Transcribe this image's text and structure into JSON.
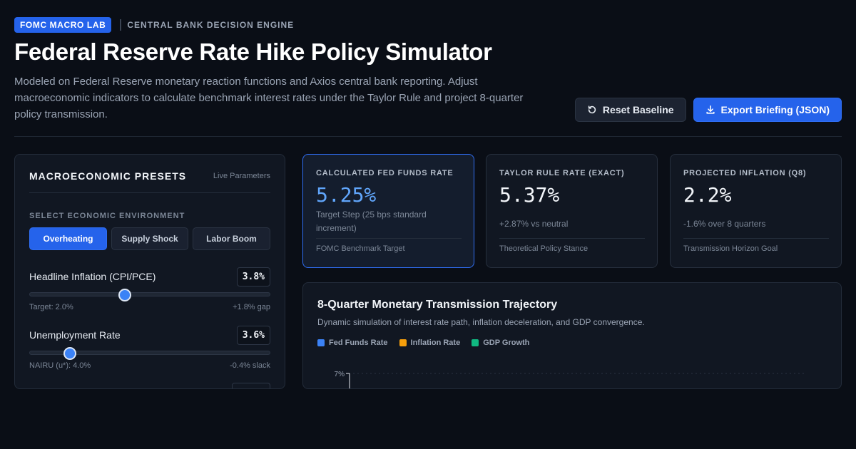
{
  "header": {
    "badge": "FOMC MACRO LAB",
    "eyebrow": "CENTRAL BANK DECISION ENGINE",
    "title": "Federal Reserve Rate Hike Policy Simulator",
    "subtitle": "Modeled on Federal Reserve monetary reaction functions and Axios central bank reporting. Adjust macroeconomic indicators to calculate benchmark interest rates under the Taylor Rule and project 8-quarter policy transmission.",
    "reset_label": "Reset Baseline",
    "export_label": "Export Briefing (JSON)"
  },
  "presets_panel": {
    "title": "MACROECONOMIC PRESETS",
    "live": "Live Parameters",
    "env_label": "SELECT ECONOMIC ENVIRONMENT",
    "presets": [
      {
        "label": "Overheating",
        "active": true
      },
      {
        "label": "Supply Shock",
        "active": false
      },
      {
        "label": "Labor Boom",
        "active": false
      }
    ],
    "params": [
      {
        "name": "Headline Inflation (CPI/PCE)",
        "value": "3.8%",
        "level": 0.395,
        "foot_left": "Target: 2.0%",
        "foot_right": "+1.8% gap"
      },
      {
        "name": "Unemployment Rate",
        "value": "3.6%",
        "level": 0.168,
        "foot_left": "NAIRU (u*): 4.0%",
        "foot_right": "-0.4% slack"
      }
    ]
  },
  "kpis": [
    {
      "label": "CALCULATED FED FUNDS RATE",
      "value": "5.25%",
      "sub": "Target Step (25 bps standard increment)",
      "foot": "FOMC Benchmark Target"
    },
    {
      "label": "TAYLOR RULE RATE (EXACT)",
      "value": "5.37%",
      "sub": "+2.87% vs neutral",
      "foot": "Theoretical Policy Stance"
    },
    {
      "label": "PROJECTED INFLATION (Q8)",
      "value": "2.2%",
      "sub": "-1.6% over 8 quarters",
      "foot": "Transmission Horizon Goal"
    }
  ],
  "chart": {
    "title": "8-Quarter Monetary Transmission Trajectory",
    "subtitle": "Dynamic simulation of interest rate path, inflation deceleration, and GDP convergence.",
    "legend": [
      {
        "name": "Fed Funds Rate",
        "color": "#3b82f6"
      },
      {
        "name": "Inflation Rate",
        "color": "#f59e0b"
      },
      {
        "name": "GDP Growth",
        "color": "#10b981"
      }
    ]
  },
  "chart_data": {
    "type": "line",
    "title": "8-Quarter Monetary Transmission Trajectory",
    "series": [
      {
        "name": "Fed Funds Rate",
        "values": []
      },
      {
        "name": "Inflation Rate",
        "values": []
      },
      {
        "name": "GDP Growth",
        "values": []
      }
    ],
    "y_ticks": [
      "7%"
    ],
    "grid": true,
    "legend_position": "top-left"
  }
}
